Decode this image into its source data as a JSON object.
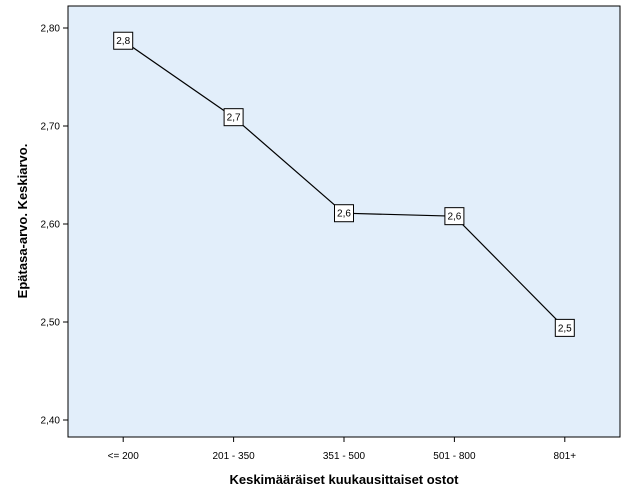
{
  "chart_data": {
    "type": "line",
    "categories": [
      "<= 200",
      "201 - 350",
      "351 - 500",
      "501 - 800",
      "801+"
    ],
    "values": [
      2.787,
      2.709,
      2.611,
      2.608,
      2.494
    ],
    "data_labels": [
      "2,8",
      "2,7",
      "2,6",
      "2,6",
      "2,5"
    ],
    "xlabel": "Keskimääräiset kuukausittaiset ostot",
    "ylabel": "Epätasa-arvo. Keskiarvo.",
    "ylim": [
      2.38,
      2.82
    ],
    "yticks": [
      2.4,
      2.5,
      2.6,
      2.7,
      2.8
    ],
    "ytick_labels": [
      "2,40",
      "2,50",
      "2,60",
      "2,70",
      "2,80"
    ],
    "grid": false,
    "colors": {
      "plot_background": "#e2eefa",
      "line": "#000000",
      "marker_fill": "#ffffff"
    }
  }
}
